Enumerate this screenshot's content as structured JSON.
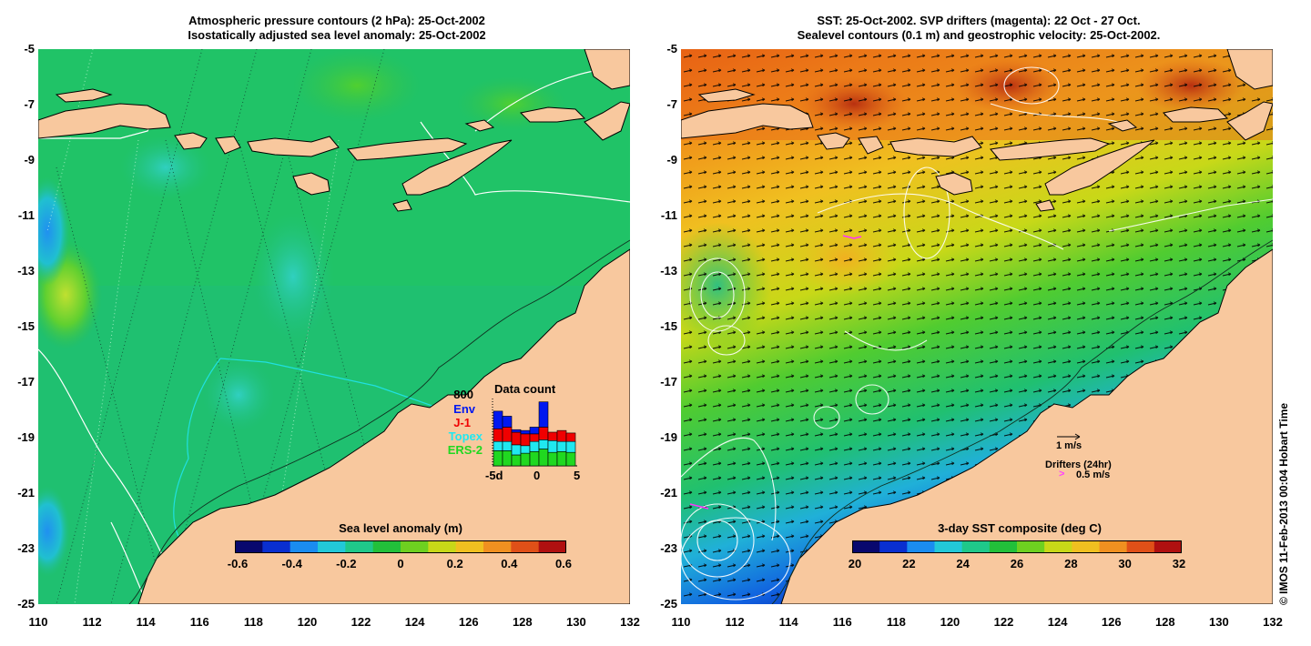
{
  "left_panel": {
    "title_line1": "Atmospheric pressure contours (2 hPa): 25-Oct-2002",
    "title_line2": "Isostatically adjusted sea level anomaly: 25-Oct-2002",
    "colorbar": {
      "label": "Sea level anomaly (m)",
      "ticks": [
        "-0.6",
        "-0.4",
        "-0.2",
        "0",
        "0.2",
        "0.4",
        "0.6"
      ],
      "colors": [
        "#08086e",
        "#0a2fd0",
        "#1a8cf0",
        "#22c8d8",
        "#1fc88a",
        "#22c03a",
        "#6ed020",
        "#c8d818",
        "#f0c020",
        "#f09020",
        "#e05018",
        "#b01010"
      ]
    },
    "data_count": {
      "title": "Data count",
      "ymax_label": "800",
      "legend": [
        {
          "name": "Env",
          "color": "#0018f0"
        },
        {
          "name": "J-1",
          "color": "#f00000"
        },
        {
          "name": "Topex",
          "color": "#20e8f0"
        },
        {
          "name": "ERS-2",
          "color": "#20d820"
        }
      ],
      "x_ticks": [
        "-5d",
        "0",
        "5"
      ],
      "bars": [
        {
          "ers": 180,
          "topex": 110,
          "j1": 150,
          "env": 210
        },
        {
          "ers": 180,
          "topex": 110,
          "j1": 170,
          "env": 130
        },
        {
          "ers": 130,
          "topex": 120,
          "j1": 150,
          "env": 30
        },
        {
          "ers": 150,
          "topex": 90,
          "j1": 140,
          "env": 40
        },
        {
          "ers": 170,
          "topex": 120,
          "j1": 90,
          "env": 80
        },
        {
          "ers": 200,
          "topex": 110,
          "j1": 150,
          "env": 300
        },
        {
          "ers": 160,
          "topex": 140,
          "j1": 100,
          "env": 0
        },
        {
          "ers": 170,
          "topex": 120,
          "j1": 130,
          "env": 0
        },
        {
          "ers": 160,
          "topex": 130,
          "j1": 100,
          "env": 0
        }
      ]
    }
  },
  "right_panel": {
    "title_line1": "SST: 25-Oct-2002. SVP drifters (magenta): 22 Oct - 27 Oct.",
    "title_line2": "Sealevel contours (0.1 m) and geostrophic velocity: 25-Oct-2002.",
    "colorbar": {
      "label": "3-day SST composite (deg C)",
      "ticks": [
        "20",
        "22",
        "24",
        "26",
        "28",
        "30",
        "32"
      ],
      "colors": [
        "#08086e",
        "#0a2fd0",
        "#1a8cf0",
        "#22c8d8",
        "#1fc88a",
        "#22c03a",
        "#6ed020",
        "#c8d818",
        "#f0c020",
        "#f09020",
        "#e05018",
        "#b01010"
      ]
    },
    "velocity_legend": {
      "label": "1 m/s"
    },
    "drifter_legend": {
      "title": "Drifters (24hr)",
      "label": "0.5 m/s",
      "color": "#ff40ff"
    }
  },
  "axes": {
    "lat_ticks": [
      "-5",
      "-7",
      "-9",
      "-11",
      "-13",
      "-15",
      "-17",
      "-19",
      "-21",
      "-23",
      "-25"
    ],
    "lon_ticks": [
      "110",
      "112",
      "114",
      "116",
      "118",
      "120",
      "122",
      "124",
      "126",
      "128",
      "130",
      "132"
    ]
  },
  "credit": "© IMOS 11-Feb-2013 00:04 Hobart Time",
  "colors": {
    "land": "#f8c89e",
    "left_ocean": "#1fc070",
    "right_ocean_warm": "#f0a020",
    "right_ocean_cool": "#1040e0"
  }
}
